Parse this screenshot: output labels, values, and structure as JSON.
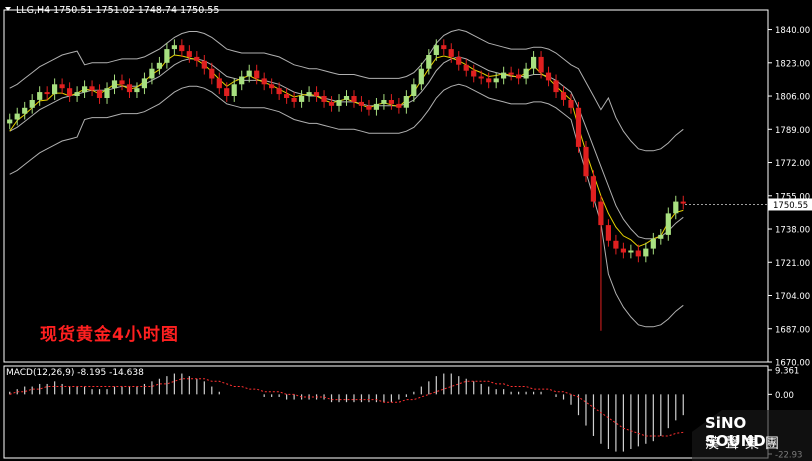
{
  "header": {
    "symbol_line": "LLG,H4  1750.51 1751.02 1748.74 1750.55"
  },
  "overlay_title": "现货黄金4小时图",
  "price_axis": {
    "ticks": [
      "1840.00",
      "1823.00",
      "1806.00",
      "1789.00",
      "1772.00",
      "1755.00",
      "1738.00",
      "1721.00",
      "1704.00",
      "1687.00",
      "1670.00"
    ],
    "current_price": "1750.55"
  },
  "macd_panel": {
    "label": "MACD(12,26,9) -8.195 -14.638",
    "ticks": [
      "9.361",
      "0.00",
      "-22.93"
    ]
  },
  "logo": {
    "name_en": "SiNO SOUND",
    "name_cn": "漢聲集團"
  },
  "colors": {
    "background": "#000000",
    "bull_candle": "#a8e080",
    "bear_candle": "#e02020",
    "ma_line": "#e6d200",
    "bands": "#b0b0b0",
    "grid_axis": "#ffffff",
    "macd_hist": "#d0d0d0",
    "macd_signal": "#ff3030",
    "title_text": "#ff2020"
  },
  "chart_data": {
    "type": "candlestick",
    "title": "现货黄金4小时图",
    "symbol": "LLG",
    "timeframe": "H4",
    "ylim": [
      1670,
      1850
    ],
    "yticks": [
      1840,
      1823,
      1806,
      1789,
      1772,
      1755,
      1738,
      1721,
      1704,
      1687,
      1670
    ],
    "last_close": 1750.55,
    "series": [
      {
        "name": "closes",
        "values": [
          1794,
          1797,
          1800,
          1804,
          1808,
          1807,
          1812,
          1810,
          1806,
          1808,
          1811,
          1809,
          1805,
          1810,
          1814,
          1812,
          1808,
          1810,
          1815,
          1820,
          1823,
          1830,
          1832,
          1829,
          1826,
          1824,
          1820,
          1815,
          1810,
          1806,
          1812,
          1816,
          1819,
          1815,
          1812,
          1810,
          1807,
          1805,
          1803,
          1806,
          1808,
          1806,
          1803,
          1801,
          1804,
          1806,
          1803,
          1801,
          1799,
          1802,
          1804,
          1802,
          1800,
          1806,
          1812,
          1820,
          1827,
          1832,
          1830,
          1826,
          1822,
          1819,
          1816,
          1815,
          1813,
          1815,
          1818,
          1817,
          1815,
          1820,
          1826,
          1818,
          1814,
          1808,
          1804,
          1800,
          1780,
          1765,
          1752,
          1740,
          1732,
          1728,
          1726,
          1727,
          1724,
          1728,
          1733,
          1735,
          1746,
          1752,
          1751
        ]
      },
      {
        "name": "moving_average",
        "values": [
          1788,
          1790,
          1793,
          1796,
          1799,
          1801,
          1803,
          1805,
          1806,
          1807,
          1808,
          1809,
          1809,
          1809,
          1810,
          1811,
          1811,
          1811,
          1812,
          1814,
          1816,
          1819,
          1822,
          1824,
          1825,
          1825,
          1824,
          1822,
          1819,
          1816,
          1815,
          1814,
          1814,
          1814,
          1814,
          1813,
          1812,
          1810,
          1808,
          1807,
          1806,
          1806,
          1805,
          1804,
          1803,
          1803,
          1803,
          1802,
          1801,
          1801,
          1801,
          1801,
          1801,
          1802,
          1804,
          1808,
          1813,
          1819,
          1823,
          1825,
          1826,
          1825,
          1823,
          1821,
          1819,
          1818,
          1817,
          1816,
          1816,
          1816,
          1817,
          1817,
          1816,
          1814,
          1811,
          1808,
          1800,
          1790,
          1780,
          1770,
          1760,
          1750,
          1743,
          1738,
          1734,
          1733,
          1733,
          1734,
          1737,
          1741,
          1744
        ]
      },
      {
        "name": "macd_histogram",
        "values": [
          1,
          2,
          3,
          3,
          4,
          4,
          5,
          4,
          3,
          3,
          3,
          2,
          2,
          2,
          3,
          3,
          3,
          3,
          4,
          5,
          6,
          7,
          8,
          8,
          7,
          6,
          5,
          3,
          1,
          0,
          0,
          0,
          0,
          0,
          -1,
          -1,
          -1,
          -2,
          -2,
          -2,
          -2,
          -2,
          -2,
          -3,
          -3,
          -3,
          -3,
          -3,
          -3,
          -3,
          -3,
          -3,
          -2,
          -1,
          1,
          3,
          5,
          7,
          8,
          8,
          7,
          6,
          5,
          4,
          3,
          2,
          2,
          1,
          1,
          1,
          1,
          1,
          0,
          -1,
          -2,
          -4,
          -8,
          -12,
          -16,
          -19,
          -21,
          -22,
          -22,
          -21,
          -20,
          -19,
          -18,
          -16,
          -13,
          -10,
          -8
        ]
      },
      {
        "name": "macd_signal",
        "values": [
          0,
          1,
          1,
          2,
          2,
          3,
          3,
          3,
          3,
          3,
          3,
          3,
          3,
          3,
          3,
          3,
          3,
          3,
          3,
          3,
          4,
          4,
          5,
          6,
          6,
          6,
          6,
          5,
          5,
          4,
          3,
          3,
          2,
          2,
          1,
          1,
          1,
          0,
          0,
          -1,
          -1,
          -1,
          -1,
          -2,
          -2,
          -2,
          -2,
          -2,
          -2,
          -2,
          -3,
          -3,
          -3,
          -2,
          -2,
          -1,
          0,
          1,
          2,
          3,
          4,
          5,
          5,
          5,
          5,
          4,
          4,
          3,
          3,
          3,
          2,
          2,
          2,
          1,
          1,
          0,
          -1,
          -3,
          -5,
          -7,
          -9,
          -11,
          -13,
          -14,
          -15,
          -16,
          -16,
          -16,
          -16,
          -15,
          -14.6
        ]
      }
    ]
  }
}
